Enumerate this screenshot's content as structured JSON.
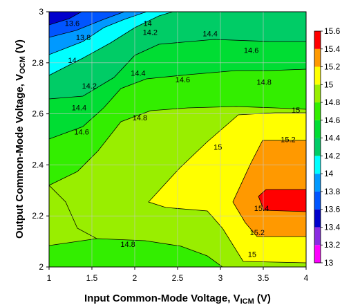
{
  "chart_data": {
    "type": "heatmap",
    "subtype": "filled-contour",
    "x": {
      "label_main": "Input Common-Mode Voltage, V",
      "label_sub": "ICM",
      "label_unit": " (V)",
      "ticks": [
        "1",
        "1.5",
        "2",
        "2.5",
        "3",
        "3.5",
        "4"
      ],
      "range": [
        1,
        4
      ]
    },
    "y": {
      "label_main": "Output Common-Mode Voltage, V",
      "label_sub": "OCM",
      "label_unit": " (V)",
      "ticks": [
        "2",
        "2.2",
        "2.4",
        "2.6",
        "2.8",
        "3"
      ],
      "range": [
        2,
        3
      ]
    },
    "grid": true,
    "colorbar": {
      "position": "right",
      "levels": [
        "13",
        "13.2",
        "13.4",
        "13.6",
        "13.8",
        "14",
        "14.2",
        "14.4",
        "14.6",
        "14.8",
        "15",
        "15.2",
        "15.4",
        "15.6"
      ],
      "colors": [
        "#ff00ff",
        "#8a2be2",
        "#0000cc",
        "#0055ff",
        "#0099ff",
        "#00ffff",
        "#00cc66",
        "#00dd33",
        "#33ee00",
        "#99ee00",
        "#ffff00",
        "#ff9900",
        "#ff0000"
      ]
    },
    "contour_labels": [
      {
        "text": "13.6",
        "x": 1.27,
        "y": 2.955
      },
      {
        "text": "13.8",
        "x": 1.4,
        "y": 2.9
      },
      {
        "text": "14",
        "x": 1.27,
        "y": 2.81
      },
      {
        "text": "14",
        "x": 2.15,
        "y": 2.955
      },
      {
        "text": "14.2",
        "x": 2.18,
        "y": 2.92
      },
      {
        "text": "14.2",
        "x": 1.47,
        "y": 2.71
      },
      {
        "text": "14.4",
        "x": 2.88,
        "y": 2.915
      },
      {
        "text": "14.4",
        "x": 2.04,
        "y": 2.76
      },
      {
        "text": "14.4",
        "x": 1.35,
        "y": 2.625
      },
      {
        "text": "14.6",
        "x": 3.36,
        "y": 2.85
      },
      {
        "text": "14.6",
        "x": 2.56,
        "y": 2.735
      },
      {
        "text": "14.6",
        "x": 1.38,
        "y": 2.53
      },
      {
        "text": "14.8",
        "x": 3.51,
        "y": 2.725
      },
      {
        "text": "14.8",
        "x": 2.06,
        "y": 2.585
      },
      {
        "text": "14.8",
        "x": 1.92,
        "y": 2.09
      },
      {
        "text": "15",
        "x": 3.88,
        "y": 2.615
      },
      {
        "text": "15",
        "x": 2.97,
        "y": 2.47
      },
      {
        "text": "15",
        "x": 3.37,
        "y": 2.05
      },
      {
        "text": "15.2",
        "x": 3.79,
        "y": 2.5
      },
      {
        "text": "15.2",
        "x": 3.43,
        "y": 2.135
      },
      {
        "text": "15.4",
        "x": 3.48,
        "y": 2.23
      }
    ]
  }
}
